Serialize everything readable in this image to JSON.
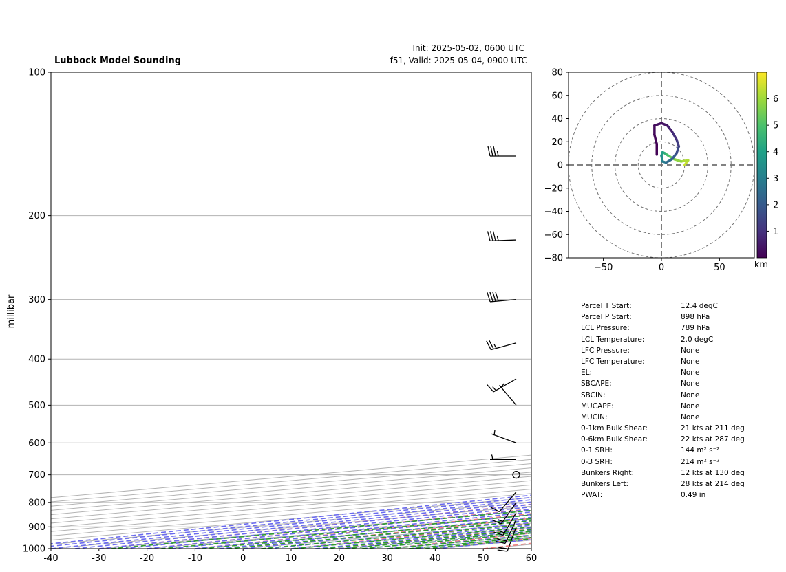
{
  "header": {
    "title": "Lubbock Model Sounding",
    "init": "Init: 2025-05-02, 0600 UTC",
    "valid": "f51, Valid: 2025-05-04, 0900 UTC"
  },
  "chart_data": [
    {
      "type": "skew-t",
      "ylabel": "millibar",
      "pressure_ticks": [
        100,
        200,
        300,
        400,
        500,
        600,
        700,
        800,
        900,
        1000
      ],
      "temperature_ticks": [
        -40,
        -30,
        -20,
        -10,
        0,
        10,
        20,
        30,
        40,
        50,
        60
      ],
      "xlim": [
        -40,
        60
      ],
      "ylim": [
        1000,
        100
      ],
      "y_scale": "log",
      "grid": true,
      "series": [
        {
          "key": "temperature",
          "color": "#e00000",
          "points": [
            [
              898,
              12.4
            ],
            [
              880,
              17.2
            ],
            [
              850,
              19.8
            ],
            [
              800,
              20.5
            ],
            [
              760,
              19.5
            ],
            [
              730,
              18.8
            ],
            [
              700,
              19.2
            ],
            [
              660,
              18.0
            ],
            [
              600,
              15.5
            ],
            [
              550,
              13.6
            ],
            [
              500,
              12.8
            ],
            [
              460,
              12.6
            ],
            [
              420,
              12.2
            ],
            [
              400,
              11.5
            ],
            [
              360,
              10.0
            ],
            [
              330,
              9.0
            ],
            [
              300,
              8.2
            ],
            [
              270,
              8.0
            ],
            [
              225,
              10.5
            ],
            [
              190,
              14.5
            ],
            [
              150,
              21.5
            ],
            [
              120,
              31.0
            ],
            [
              100,
              38.0
            ]
          ]
        },
        {
          "key": "dewpoint",
          "color": "#008000",
          "points": [
            [
              898,
              8.4
            ],
            [
              880,
              6.0
            ],
            [
              860,
              5.8
            ],
            [
              840,
              6.2
            ],
            [
              820,
              5.6
            ],
            [
              790,
              6.4
            ],
            [
              760,
              11.0
            ],
            [
              740,
              13.3
            ],
            [
              700,
              4.0
            ],
            [
              680,
              2.8
            ],
            [
              650,
              1.8
            ],
            [
              600,
              0.8
            ],
            [
              560,
              0.6
            ],
            [
              540,
              0.4
            ],
            [
              500,
              -2.0
            ],
            [
              470,
              -8.0
            ],
            [
              440,
              -6.5
            ],
            [
              420,
              1.0
            ],
            [
              380,
              8.5
            ],
            [
              360,
              7.0
            ],
            [
              330,
              3.0
            ],
            [
              300,
              -2.0
            ],
            [
              250,
              -6.0
            ],
            [
              200,
              -10.0
            ],
            [
              175,
              -11.0
            ],
            [
              150,
              -10.0
            ],
            [
              125,
              -5.0
            ],
            [
              110,
              0.0
            ],
            [
              100,
              3.5
            ]
          ]
        },
        {
          "key": "parcel",
          "color": "#000000",
          "points": [
            [
              898,
              12.4
            ],
            [
              789,
              2.0
            ],
            [
              700,
              -4.2
            ],
            [
              600,
              -11.0
            ],
            [
              500,
              -18.5
            ],
            [
              400,
              -27.5
            ],
            [
              300,
              -39.5
            ],
            [
              250,
              -47.0
            ],
            [
              200,
              -55.5
            ],
            [
              150,
              -67.0
            ],
            [
              125,
              -74.5
            ],
            [
              100,
              -83.0
            ]
          ]
        }
      ],
      "wind_barbs": [
        {
          "p": 900,
          "speed_kts": 20,
          "dir_deg": 200
        },
        {
          "p": 870,
          "speed_kts": 20,
          "dir_deg": 205
        },
        {
          "p": 840,
          "speed_kts": 15,
          "dir_deg": 210
        },
        {
          "p": 800,
          "speed_kts": 15,
          "dir_deg": 215
        },
        {
          "p": 760,
          "speed_kts": 10,
          "dir_deg": 220
        },
        {
          "p": 700,
          "speed_kts": 0,
          "dir_deg": 0
        },
        {
          "p": 650,
          "speed_kts": 5,
          "dir_deg": 270
        },
        {
          "p": 600,
          "speed_kts": 5,
          "dir_deg": 290
        },
        {
          "p": 500,
          "speed_kts": 5,
          "dir_deg": 320
        },
        {
          "p": 440,
          "speed_kts": 15,
          "dir_deg": 240
        },
        {
          "p": 370,
          "speed_kts": 25,
          "dir_deg": 255
        },
        {
          "p": 300,
          "speed_kts": 40,
          "dir_deg": 265
        },
        {
          "p": 225,
          "speed_kts": 35,
          "dir_deg": 268
        },
        {
          "p": 150,
          "speed_kts": 35,
          "dir_deg": 270
        }
      ]
    },
    {
      "type": "hodograph",
      "x_ticks": [
        -50,
        0,
        50
      ],
      "y_ticks": [
        80,
        60,
        40,
        20,
        0,
        -20,
        -40,
        -60,
        -80
      ],
      "xlim": [
        -80,
        80
      ],
      "ylim": [
        -80,
        80
      ],
      "rings": [
        20,
        40,
        60,
        80
      ],
      "colorbar_label": "km",
      "colorbar_ticks": [
        1,
        2,
        3,
        4,
        5,
        6
      ],
      "colorbar_range": [
        0,
        7
      ],
      "trace": [
        {
          "u": 20,
          "v": 0,
          "h": 6.5
        },
        {
          "u": 23,
          "v": 4,
          "h": 6.3
        },
        {
          "u": 17,
          "v": 3,
          "h": 6.0
        },
        {
          "u": 11,
          "v": 5,
          "h": 5.6
        },
        {
          "u": 6,
          "v": 8,
          "h": 5.2
        },
        {
          "u": 3,
          "v": 10,
          "h": 4.7
        },
        {
          "u": 1,
          "v": 11,
          "h": 4.2
        },
        {
          "u": 0,
          "v": 8,
          "h": 3.7
        },
        {
          "u": 1,
          "v": 3,
          "h": 3.2
        },
        {
          "u": 4,
          "v": 2,
          "h": 2.7
        },
        {
          "u": 9,
          "v": 5,
          "h": 2.2
        },
        {
          "u": 13,
          "v": 10,
          "h": 1.8
        },
        {
          "u": 15,
          "v": 16,
          "h": 1.4
        },
        {
          "u": 13,
          "v": 22,
          "h": 1.1
        },
        {
          "u": 9,
          "v": 29,
          "h": 0.8
        },
        {
          "u": 5,
          "v": 34,
          "h": 0.5
        },
        {
          "u": 0,
          "v": 36,
          "h": 0.35
        },
        {
          "u": -6,
          "v": 34,
          "h": 0.25
        },
        {
          "u": -6,
          "v": 26,
          "h": 0.15
        },
        {
          "u": -4,
          "v": 18,
          "h": 0.08
        },
        {
          "u": -4,
          "v": 9,
          "h": 0.0
        }
      ]
    }
  ],
  "stats": [
    {
      "label": "Parcel T Start:",
      "value": "12.4 degC"
    },
    {
      "label": "Parcel P Start:",
      "value": "898 hPa"
    },
    {
      "label": "LCL Pressure:",
      "value": "789 hPa"
    },
    {
      "label": "LCL Temperature:",
      "value": "2.0 degC"
    },
    {
      "label": "LFC Pressure:",
      "value": "None"
    },
    {
      "label": "LFC Temperature:",
      "value": "None"
    },
    {
      "label": "EL:",
      "value": "None"
    },
    {
      "label": "SBCAPE:",
      "value": "None"
    },
    {
      "label": "SBCIN:",
      "value": "None"
    },
    {
      "label": "MUCAPE:",
      "value": "None"
    },
    {
      "label": "MUCIN:",
      "value": "None"
    },
    {
      "label": "0-1km Bulk Shear:",
      "value": "21 kts at 211 deg"
    },
    {
      "label": "0-6km Bulk Shear:",
      "value": "22 kts at 287 deg"
    },
    {
      "label": "0-1 SRH:",
      "value": "144 m² s⁻²"
    },
    {
      "label": "0-3 SRH:",
      "value": "214 m² s⁻²"
    },
    {
      "label": "Bunkers Right:",
      "value": "12 kts at 130 deg"
    },
    {
      "label": "Bunkers Left:",
      "value": "28 kts at 214 deg"
    },
    {
      "label": "PWAT:",
      "value": "0.49 in"
    }
  ]
}
